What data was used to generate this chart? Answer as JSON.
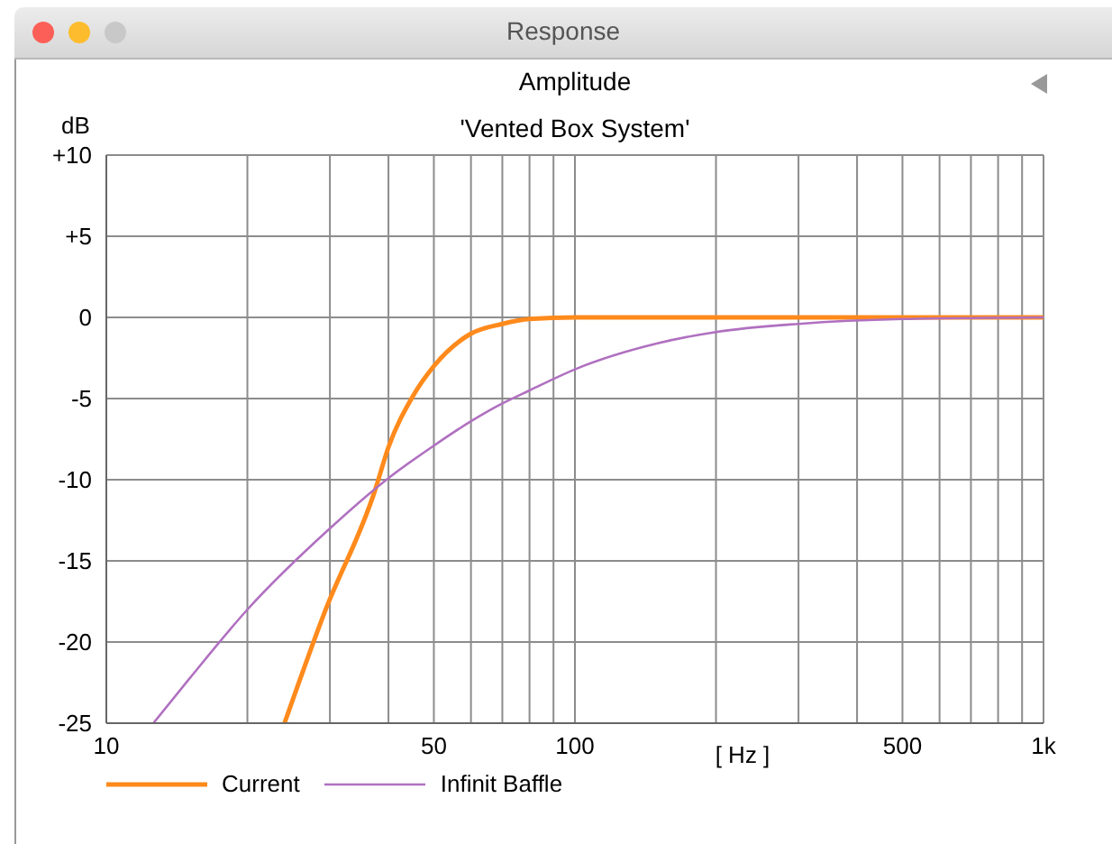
{
  "chart_data": {
    "type": "line",
    "title": "Amplitude",
    "subtitle": "'Vented Box System'",
    "ylabel": "dB",
    "xlabel": "[ Hz ]",
    "annotations": [
      "Response"
    ],
    "log": "x",
    "grid": true,
    "legend": "bottom left",
    "marker": "none",
    "line_style": "solid",
    "xlim": [
      10,
      1000
    ],
    "xticks": [
      10,
      {
        "value": 20,
        "label": null
      },
      {
        "value": 30,
        "label": null
      },
      {
        "value": 40,
        "label": null
      },
      50,
      {
        "value": 60,
        "label": null
      },
      {
        "value": 70,
        "label": null
      },
      {
        "value": 80,
        "label": null
      },
      {
        "value": 90,
        "label": null
      },
      100,
      {
        "value": 200,
        "label": null
      },
      {
        "value": 300,
        "label": null
      },
      {
        "value": 400,
        "label": null
      },
      500,
      {
        "value": 600,
        "label": null
      },
      {
        "value": 700,
        "label": null
      },
      {
        "value": 800,
        "label": null
      },
      {
        "value": 900,
        "label": null
      },
      {
        "value": 1000,
        "label": "1k"
      }
    ],
    "ylim": [
      -25,
      10
    ],
    "yticks": [
      -25,
      -20,
      -15,
      -10,
      -5,
      0,
      {
        "value": 5,
        "label": "+5"
      },
      {
        "value": 10,
        "label": "+10"
      }
    ],
    "series": [
      {
        "name": "Current",
        "color": "#ff8a1c",
        "x": [
          24,
          29.2,
          37.4,
          40,
          45,
          50,
          60,
          70,
          80,
          100,
          200,
          500,
          1000
        ],
        "values": [
          -25,
          -18.2,
          -10.7,
          -8,
          -4.9,
          -3,
          -1,
          -0.4,
          -0.1,
          0,
          0,
          0,
          0
        ]
      },
      {
        "name": "Infinit Baffle",
        "color": "#b070c0",
        "x": [
          12.6,
          15,
          20,
          30,
          40,
          50,
          60,
          70,
          80,
          100,
          150,
          200,
          300,
          500,
          1000
        ],
        "values": [
          -25,
          -22.3,
          -18,
          -13,
          -9.9,
          -7.9,
          -6.4,
          -5.3,
          -4.5,
          -3.2,
          -1.6,
          -0.9,
          -0.4,
          -0.1,
          0
        ]
      }
    ]
  }
}
